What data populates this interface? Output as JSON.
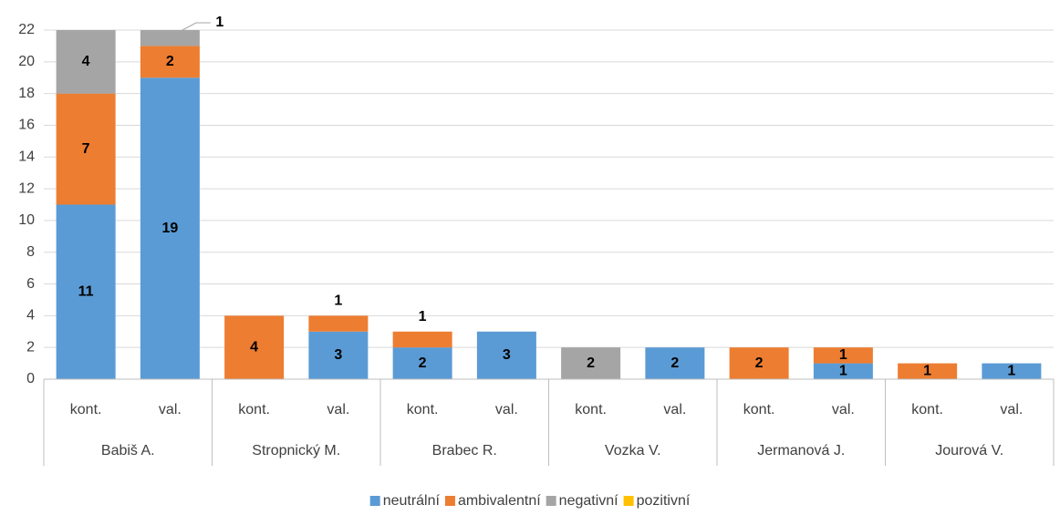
{
  "chart_data": {
    "type": "stacked_bar",
    "categories": [
      "kont.",
      "val.",
      "kont.",
      "val.",
      "kont.",
      "val.",
      "kont.",
      "val.",
      "kont.",
      "val.",
      "kont.",
      "val."
    ],
    "groups": [
      "Babiš A.",
      "Stropnický M.",
      "Brabec R.",
      "Vozka V.",
      "Jermanová J.",
      "Jourová V."
    ],
    "series": [
      {
        "name": "neutrální",
        "color": "#5b9bd5",
        "values": [
          11,
          19,
          null,
          3,
          2,
          3,
          null,
          2,
          null,
          1,
          null,
          1
        ]
      },
      {
        "name": "ambivalentní",
        "color": "#ed7d31",
        "values": [
          7,
          2,
          4,
          1,
          1,
          null,
          null,
          null,
          2,
          1,
          1,
          null
        ]
      },
      {
        "name": "negativní",
        "color": "#a5a5a5",
        "values": [
          4,
          1,
          null,
          null,
          null,
          null,
          2,
          null,
          null,
          null,
          null,
          null
        ]
      },
      {
        "name": "pozitivní",
        "color": "#ffc000",
        "values": [
          null,
          null,
          null,
          null,
          null,
          null,
          null,
          null,
          null,
          null,
          null,
          null
        ]
      }
    ],
    "ylim": [
      0,
      22
    ],
    "yticks": [
      0,
      2,
      4,
      6,
      8,
      10,
      12,
      14,
      16,
      18,
      20,
      22
    ],
    "grid": true,
    "legend": "bottom"
  }
}
